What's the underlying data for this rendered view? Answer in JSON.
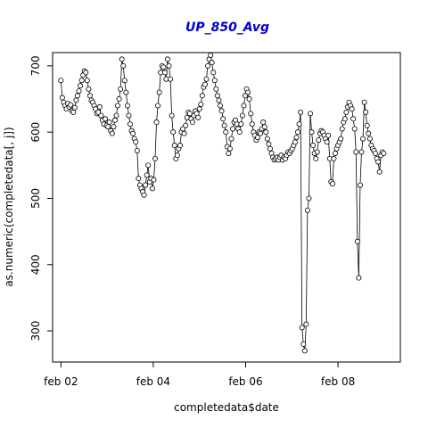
{
  "chart_data": {
    "type": "scatter",
    "title": "UP_850_Avg",
    "xlabel": "completedata$date",
    "ylabel": "as.numeric(completedata[, j])",
    "x_unit": "days",
    "xlim": [
      1.82,
      9.35
    ],
    "ylim": [
      253,
      720
    ],
    "x_ticks": [
      {
        "value": 2,
        "label": "feb 02"
      },
      {
        "value": 4,
        "label": "feb 04"
      },
      {
        "value": 6,
        "label": "feb 06"
      },
      {
        "value": 8,
        "label": "feb 08"
      }
    ],
    "y_ticks": [
      300,
      400,
      500,
      600,
      700
    ],
    "grid": false,
    "legend": "none",
    "marker": "open-circle",
    "connect_lines": true,
    "colors": {
      "title": "#0000cd",
      "points": "#000000",
      "lines": "#000000"
    },
    "points": [
      [
        2.0,
        678
      ],
      [
        2.03,
        652
      ],
      [
        2.06,
        645
      ],
      [
        2.09,
        640
      ],
      [
        2.12,
        635
      ],
      [
        2.15,
        643
      ],
      [
        2.18,
        638
      ],
      [
        2.21,
        641
      ],
      [
        2.24,
        632
      ],
      [
        2.27,
        630
      ],
      [
        2.3,
        637
      ],
      [
        2.33,
        648
      ],
      [
        2.36,
        655
      ],
      [
        2.39,
        662
      ],
      [
        2.42,
        670
      ],
      [
        2.45,
        678
      ],
      [
        2.48,
        686
      ],
      [
        2.51,
        692
      ],
      [
        2.54,
        690
      ],
      [
        2.57,
        678
      ],
      [
        2.6,
        665
      ],
      [
        2.63,
        655
      ],
      [
        2.66,
        648
      ],
      [
        2.69,
        645
      ],
      [
        2.72,
        640
      ],
      [
        2.75,
        635
      ],
      [
        2.78,
        628
      ],
      [
        2.81,
        630
      ],
      [
        2.84,
        638
      ],
      [
        2.87,
        625
      ],
      [
        2.9,
        618
      ],
      [
        2.93,
        612
      ],
      [
        2.96,
        620
      ],
      [
        2.99,
        610
      ],
      [
        3.02,
        608
      ],
      [
        3.05,
        615
      ],
      [
        3.08,
        602
      ],
      [
        3.11,
        598
      ],
      [
        3.14,
        608
      ],
      [
        3.17,
        618
      ],
      [
        3.2,
        625
      ],
      [
        3.23,
        640
      ],
      [
        3.26,
        650
      ],
      [
        3.29,
        665
      ],
      [
        3.32,
        710
      ],
      [
        3.35,
        700
      ],
      [
        3.38,
        678
      ],
      [
        3.41,
        660
      ],
      [
        3.44,
        640
      ],
      [
        3.47,
        625
      ],
      [
        3.5,
        612
      ],
      [
        3.53,
        602
      ],
      [
        3.56,
        598
      ],
      [
        3.59,
        590
      ],
      [
        3.62,
        585
      ],
      [
        3.65,
        572
      ],
      [
        3.68,
        530
      ],
      [
        3.71,
        520
      ],
      [
        3.74,
        515
      ],
      [
        3.77,
        510
      ],
      [
        3.8,
        505
      ],
      [
        3.83,
        520
      ],
      [
        3.86,
        535
      ],
      [
        3.89,
        550
      ],
      [
        3.92,
        525
      ],
      [
        3.95,
        530
      ],
      [
        3.98,
        515
      ],
      [
        4.01,
        528
      ],
      [
        4.04,
        560
      ],
      [
        4.07,
        615
      ],
      [
        4.1,
        640
      ],
      [
        4.13,
        660
      ],
      [
        4.16,
        690
      ],
      [
        4.19,
        700
      ],
      [
        4.22,
        698
      ],
      [
        4.25,
        690
      ],
      [
        4.28,
        680
      ],
      [
        4.31,
        710
      ],
      [
        4.34,
        700
      ],
      [
        4.37,
        680
      ],
      [
        4.4,
        625
      ],
      [
        4.43,
        600
      ],
      [
        4.46,
        580
      ],
      [
        4.49,
        560
      ],
      [
        4.52,
        565
      ],
      [
        4.55,
        575
      ],
      [
        4.58,
        580
      ],
      [
        4.61,
        600
      ],
      [
        4.64,
        605
      ],
      [
        4.67,
        598
      ],
      [
        4.7,
        610
      ],
      [
        4.73,
        622
      ],
      [
        4.76,
        630
      ],
      [
        4.79,
        628
      ],
      [
        4.82,
        620
      ],
      [
        4.85,
        615
      ],
      [
        4.88,
        625
      ],
      [
        4.91,
        632
      ],
      [
        4.94,
        628
      ],
      [
        4.97,
        622
      ],
      [
        5.0,
        635
      ],
      [
        5.03,
        642
      ],
      [
        5.06,
        655
      ],
      [
        5.09,
        668
      ],
      [
        5.12,
        672
      ],
      [
        5.15,
        680
      ],
      [
        5.18,
        700
      ],
      [
        5.21,
        710
      ],
      [
        5.24,
        716
      ],
      [
        5.27,
        705
      ],
      [
        5.3,
        690
      ],
      [
        5.33,
        678
      ],
      [
        5.36,
        665
      ],
      [
        5.39,
        655
      ],
      [
        5.42,
        648
      ],
      [
        5.45,
        640
      ],
      [
        5.48,
        632
      ],
      [
        5.51,
        620
      ],
      [
        5.54,
        610
      ],
      [
        5.57,
        600
      ],
      [
        5.6,
        578
      ],
      [
        5.63,
        568
      ],
      [
        5.66,
        575
      ],
      [
        5.69,
        590
      ],
      [
        5.72,
        605
      ],
      [
        5.75,
        615
      ],
      [
        5.78,
        618
      ],
      [
        5.81,
        612
      ],
      [
        5.84,
        605
      ],
      [
        5.87,
        600
      ],
      [
        5.9,
        612
      ],
      [
        5.93,
        625
      ],
      [
        5.96,
        640
      ],
      [
        5.99,
        655
      ],
      [
        6.02,
        665
      ],
      [
        6.05,
        660
      ],
      [
        6.08,
        650
      ],
      [
        6.11,
        628
      ],
      [
        6.14,
        612
      ],
      [
        6.17,
        600
      ],
      [
        6.2,
        595
      ],
      [
        6.23,
        588
      ],
      [
        6.26,
        592
      ],
      [
        6.29,
        600
      ],
      [
        6.32,
        598
      ],
      [
        6.35,
        605
      ],
      [
        6.38,
        615
      ],
      [
        6.41,
        608
      ],
      [
        6.44,
        600
      ],
      [
        6.47,
        590
      ],
      [
        6.5,
        582
      ],
      [
        6.53,
        575
      ],
      [
        6.56,
        568
      ],
      [
        6.59,
        562
      ],
      [
        6.62,
        558
      ],
      [
        6.65,
        560
      ],
      [
        6.68,
        562
      ],
      [
        6.71,
        558
      ],
      [
        6.74,
        562
      ],
      [
        6.77,
        565
      ],
      [
        6.8,
        558
      ],
      [
        6.83,
        562
      ],
      [
        6.86,
        560
      ],
      [
        6.89,
        565
      ],
      [
        6.92,
        570
      ],
      [
        6.95,
        568
      ],
      [
        6.98,
        572
      ],
      [
        7.01,
        575
      ],
      [
        7.04,
        580
      ],
      [
        7.07,
        585
      ],
      [
        7.1,
        592
      ],
      [
        7.13,
        600
      ],
      [
        7.16,
        612
      ],
      [
        7.19,
        630
      ],
      [
        7.22,
        305
      ],
      [
        7.25,
        280
      ],
      [
        7.28,
        270
      ],
      [
        7.31,
        310
      ],
      [
        7.34,
        482
      ],
      [
        7.37,
        500
      ],
      [
        7.4,
        628
      ],
      [
        7.43,
        600
      ],
      [
        7.46,
        580
      ],
      [
        7.49,
        568
      ],
      [
        7.52,
        560
      ],
      [
        7.55,
        570
      ],
      [
        7.58,
        588
      ],
      [
        7.61,
        598
      ],
      [
        7.64,
        602
      ],
      [
        7.67,
        600
      ],
      [
        7.7,
        595
      ],
      [
        7.73,
        590
      ],
      [
        7.76,
        585
      ],
      [
        7.79,
        595
      ],
      [
        7.82,
        560
      ],
      [
        7.85,
        525
      ],
      [
        7.88,
        522
      ],
      [
        7.91,
        560
      ],
      [
        7.94,
        568
      ],
      [
        7.97,
        575
      ],
      [
        8.0,
        580
      ],
      [
        8.03,
        585
      ],
      [
        8.06,
        590
      ],
      [
        8.09,
        605
      ],
      [
        8.12,
        615
      ],
      [
        8.15,
        620
      ],
      [
        8.18,
        630
      ],
      [
        8.21,
        638
      ],
      [
        8.24,
        645
      ],
      [
        8.27,
        640
      ],
      [
        8.3,
        635
      ],
      [
        8.33,
        620
      ],
      [
        8.36,
        605
      ],
      [
        8.39,
        570
      ],
      [
        8.42,
        435
      ],
      [
        8.45,
        380
      ],
      [
        8.48,
        520
      ],
      [
        8.51,
        570
      ],
      [
        8.54,
        590
      ],
      [
        8.57,
        645
      ],
      [
        8.6,
        630
      ],
      [
        8.63,
        610
      ],
      [
        8.66,
        598
      ],
      [
        8.69,
        590
      ],
      [
        8.72,
        580
      ],
      [
        8.75,
        575
      ],
      [
        8.78,
        572
      ],
      [
        8.81,
        568
      ],
      [
        8.84,
        560
      ],
      [
        8.87,
        555
      ],
      [
        8.9,
        540
      ],
      [
        8.93,
        565
      ],
      [
        8.96,
        570
      ],
      [
        8.99,
        568
      ]
    ]
  }
}
